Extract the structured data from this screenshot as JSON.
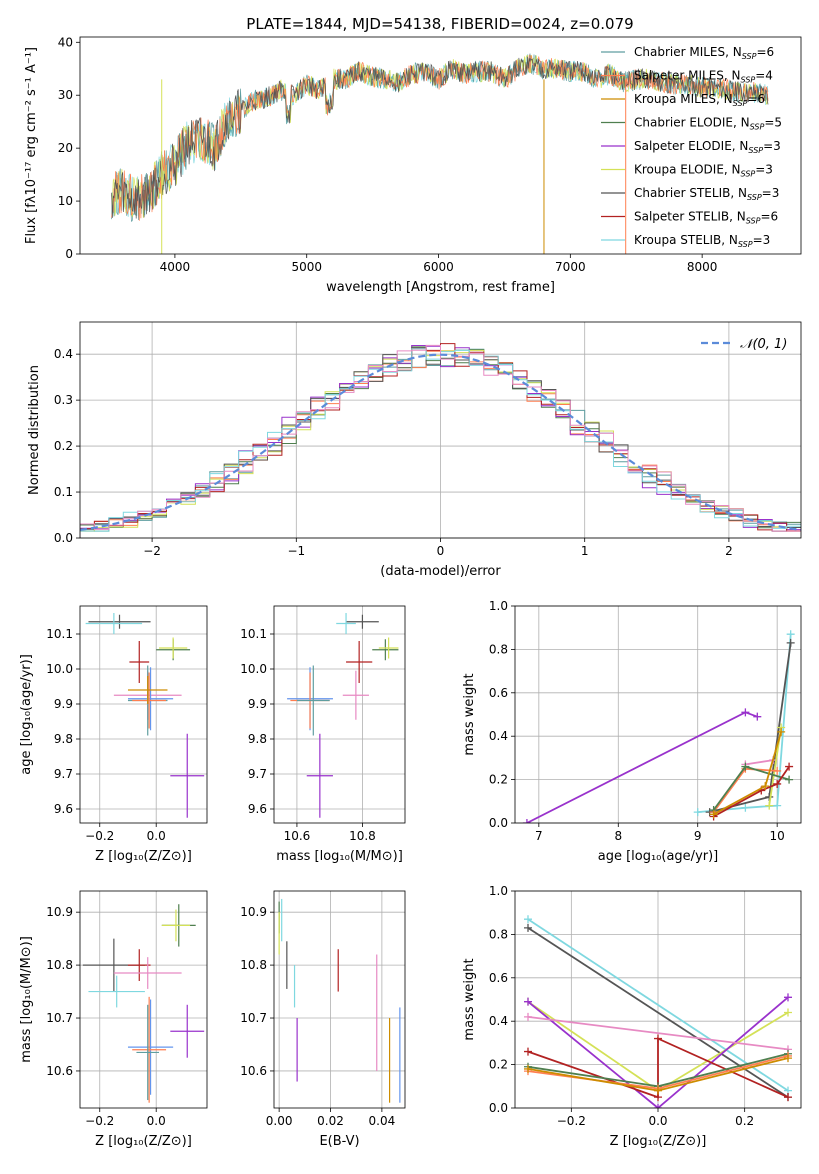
{
  "figure_title": "PLATE=1844, MJD=54138, FIBERID=0024, z=0.079",
  "colors": {
    "Chabrier MILES": "#5f9ea0",
    "Salpeter MILES": "#ff7f50",
    "Kroupa MILES": "#cd8c00",
    "Chabrier ELODIE": "#4f7f4f",
    "Salpeter ELODIE": "#9932cc",
    "Kroupa ELODIE": "#d4e157",
    "Chabrier STELIB": "#555555",
    "Salpeter STELIB": "#b22222",
    "Kroupa STELIB": "#7fd8e0",
    "hotpink": "#e78ac3",
    "royal": "#6495ed",
    "normal_curve": "#5b8bd9"
  },
  "chart_data": [
    {
      "id": "spectrum",
      "type": "line",
      "xlabel": "wavelength [Angstrom, rest frame]",
      "ylabel": "Flux [fλ10⁻¹⁷ erg cm⁻² s⁻¹ A⁻¹]",
      "xlim": [
        3280,
        8750
      ],
      "ylim": [
        0,
        41
      ],
      "xticks": [
        4000,
        5000,
        6000,
        7000,
        8000
      ],
      "yticks": [
        0,
        10,
        20,
        30,
        40
      ],
      "x": [
        3520,
        3600,
        3700,
        3800,
        3900,
        4000,
        4100,
        4200,
        4300,
        4400,
        4500,
        4600,
        4700,
        4800,
        4900,
        5000,
        5100,
        5200,
        5300,
        5400,
        5500,
        5600,
        5700,
        5800,
        5900,
        6000,
        6100,
        6200,
        6300,
        6400,
        6500,
        6600,
        6700,
        6800,
        6900,
        7000,
        7100,
        7200,
        7300,
        7400,
        7500,
        7600,
        7700,
        7800,
        7900,
        8000,
        8100,
        8200,
        8300,
        8400,
        8500
      ],
      "y": [
        11,
        12,
        10,
        11.5,
        15,
        17,
        21,
        22,
        20,
        26,
        27,
        29,
        29.5,
        31,
        30,
        32,
        31,
        33,
        33,
        34.5,
        33.5,
        33,
        32.5,
        34,
        34.5,
        33,
        35,
        34,
        34.5,
        34.5,
        33,
        35,
        36,
        35,
        35,
        34.5,
        34.5,
        33,
        34,
        32.5,
        33,
        33,
        32.5,
        32,
        32,
        31.5,
        31.5,
        31,
        30.5,
        30.5,
        30
      ],
      "legend": {
        "position": "upper right",
        "entries": [
          {
            "label": "Chabrier MILES, N",
            "sub": "SSP",
            "tail": "=6",
            "color": "Chabrier MILES"
          },
          {
            "label": "Salpeter MILES, N",
            "sub": "SSP",
            "tail": "=4",
            "color": "Salpeter MILES"
          },
          {
            "label": "Kroupa MILES, N",
            "sub": "SSP",
            "tail": "=6",
            "color": "Kroupa MILES"
          },
          {
            "label": "Chabrier ELODIE, N",
            "sub": "SSP",
            "tail": "=5",
            "color": "Chabrier ELODIE"
          },
          {
            "label": "Salpeter ELODIE, N",
            "sub": "SSP",
            "tail": "=3",
            "color": "Salpeter ELODIE"
          },
          {
            "label": "Kroupa ELODIE, N",
            "sub": "SSP",
            "tail": "=3",
            "color": "Kroupa ELODIE"
          },
          {
            "label": "Chabrier STELIB, N",
            "sub": "SSP",
            "tail": "=3",
            "color": "Chabrier STELIB"
          },
          {
            "label": "Salpeter STELIB, N",
            "sub": "SSP",
            "tail": "=6",
            "color": "Salpeter STELIB"
          },
          {
            "label": "Kroupa STELIB, N",
            "sub": "SSP",
            "tail": "=3",
            "color": "Kroupa STELIB"
          }
        ]
      }
    },
    {
      "id": "residuals",
      "type": "histogram",
      "xlabel": "(data-model)/error",
      "ylabel": "Normed distribution",
      "xlim": [
        -2.5,
        2.5
      ],
      "ylim": [
        0,
        0.47
      ],
      "xticks": [
        -2,
        -1,
        0,
        1,
        2
      ],
      "yticks": [
        0.0,
        0.1,
        0.2,
        0.3,
        0.4
      ],
      "grid": true,
      "legend": {
        "position": "upper right",
        "label": "𝒩(0, 1)"
      },
      "bin_width": 0.1,
      "series": [
        {
          "color": "Chabrier MILES",
          "offset": 0.0
        },
        {
          "color": "Salpeter MILES",
          "offset": 0.012
        },
        {
          "color": "Chabrier ELODIE",
          "offset": -0.015
        },
        {
          "color": "Salpeter ELODIE",
          "offset": 0.035
        },
        {
          "color": "Kroupa ELODIE",
          "offset": -0.025
        },
        {
          "color": "Chabrier STELIB",
          "offset": 0.008
        },
        {
          "color": "Salpeter STELIB",
          "offset": -0.006
        },
        {
          "color": "Kroupa STELIB",
          "offset": 0.018
        },
        {
          "color": "hotpink",
          "offset": -0.01
        }
      ]
    },
    {
      "id": "age_vs_Z",
      "type": "errorbar",
      "xlabel": "Z [log₁₀(Z/Z⊙)]",
      "ylabel": "age  [log₁₀(age/yr)]",
      "xlim": [
        -0.27,
        0.18
      ],
      "ylim": [
        9.56,
        10.18
      ],
      "xticks": [
        -0.2,
        0.0
      ],
      "yticks": [
        9.6,
        9.7,
        9.8,
        9.9,
        10.0,
        10.1
      ],
      "grid": true,
      "points": [
        {
          "x": -0.13,
          "y": 10.135,
          "dx": 0.11,
          "dy": 0.02,
          "color": "Chabrier STELIB"
        },
        {
          "x": -0.15,
          "y": 10.13,
          "dx": 0.1,
          "dy": 0.03,
          "color": "Kroupa STELIB"
        },
        {
          "x": 0.06,
          "y": 10.055,
          "dx": 0.06,
          "dy": 0.03,
          "color": "Chabrier ELODIE"
        },
        {
          "x": 0.06,
          "y": 10.06,
          "dx": 0.05,
          "dy": 0.03,
          "color": "Kroupa ELODIE"
        },
        {
          "x": -0.06,
          "y": 10.02,
          "dx": 0.035,
          "dy": 0.06,
          "color": "Salpeter STELIB"
        },
        {
          "x": -0.03,
          "y": 9.925,
          "dx": 0.12,
          "dy": 0.07,
          "color": "hotpink"
        },
        {
          "x": -0.03,
          "y": 9.91,
          "dx": 0.07,
          "dy": 0.1,
          "color": "Chabrier MILES"
        },
        {
          "x": -0.02,
          "y": 9.915,
          "dx": 0.08,
          "dy": 0.09,
          "color": "royal"
        },
        {
          "x": -0.025,
          "y": 9.91,
          "dx": 0.06,
          "dy": 0.08,
          "color": "Salpeter MILES"
        },
        {
          "x": -0.03,
          "y": 9.94,
          "dx": 0.07,
          "dy": 0.04,
          "color": "Kroupa MILES"
        },
        {
          "x": 0.11,
          "y": 9.695,
          "dx": 0.06,
          "dy": 0.12,
          "color": "Salpeter ELODIE"
        }
      ]
    },
    {
      "id": "age_vs_mass",
      "type": "errorbar",
      "xlabel": "mass [log₁₀(M/M⊙)]",
      "ylabel": "",
      "xlim": [
        10.53,
        10.93
      ],
      "ylim": [
        9.56,
        10.18
      ],
      "xticks": [
        10.6,
        10.8
      ],
      "yticks": [
        9.6,
        9.7,
        9.8,
        9.9,
        10.0,
        10.1
      ],
      "grid": true,
      "points": [
        {
          "x": 10.8,
          "y": 10.135,
          "dx": 0.05,
          "dy": 0.02,
          "color": "Chabrier STELIB"
        },
        {
          "x": 10.75,
          "y": 10.13,
          "dx": 0.03,
          "dy": 0.03,
          "color": "Kroupa STELIB"
        },
        {
          "x": 10.87,
          "y": 10.055,
          "dx": 0.04,
          "dy": 0.03,
          "color": "Chabrier ELODIE"
        },
        {
          "x": 10.88,
          "y": 10.06,
          "dx": 0.03,
          "dy": 0.03,
          "color": "Kroupa ELODIE"
        },
        {
          "x": 10.79,
          "y": 10.02,
          "dx": 0.04,
          "dy": 0.06,
          "color": "Salpeter STELIB"
        },
        {
          "x": 10.78,
          "y": 9.925,
          "dx": 0.04,
          "dy": 0.07,
          "color": "hotpink"
        },
        {
          "x": 10.64,
          "y": 9.915,
          "dx": 0.07,
          "dy": 0.09,
          "color": "royal"
        },
        {
          "x": 10.64,
          "y": 9.91,
          "dx": 0.06,
          "dy": 0.08,
          "color": "Salpeter MILES"
        },
        {
          "x": 10.65,
          "y": 9.91,
          "dx": 0.05,
          "dy": 0.1,
          "color": "Chabrier MILES"
        },
        {
          "x": 10.67,
          "y": 9.695,
          "dx": 0.04,
          "dy": 0.12,
          "color": "Salpeter ELODIE"
        }
      ]
    },
    {
      "id": "weight_vs_age",
      "type": "line",
      "xlabel": "age  [log₁₀(age/yr)]",
      "ylabel": "mass weight",
      "xlim": [
        6.7,
        10.3
      ],
      "ylim": [
        0,
        1.0
      ],
      "xticks": [
        7,
        8,
        9,
        10
      ],
      "yticks": [
        0.0,
        0.2,
        0.4,
        0.6,
        0.8,
        1.0
      ],
      "grid": true,
      "series": [
        {
          "color": "Salpeter ELODIE",
          "x": [
            6.85,
            9.6,
            9.75
          ],
          "y": [
            0.0,
            0.51,
            0.49
          ]
        },
        {
          "color": "Kroupa STELIB",
          "x": [
            9.0,
            9.6,
            10.0,
            10.17
          ],
          "y": [
            0.05,
            0.07,
            0.08,
            0.87
          ]
        },
        {
          "color": "Chabrier STELIB",
          "x": [
            9.15,
            9.9,
            10.17
          ],
          "y": [
            0.05,
            0.12,
            0.83
          ]
        },
        {
          "color": "hotpink",
          "x": [
            9.6,
            9.95
          ],
          "y": [
            0.27,
            0.29
          ]
        },
        {
          "color": "Kroupa ELODIE",
          "x": [
            9.9,
            10.05
          ],
          "y": [
            0.08,
            0.44
          ]
        },
        {
          "color": "Salpeter MILES",
          "x": [
            9.2,
            9.6,
            10.0
          ],
          "y": [
            0.05,
            0.25,
            0.24
          ]
        },
        {
          "color": "Chabrier ELODIE",
          "x": [
            9.2,
            9.6,
            10.15
          ],
          "y": [
            0.06,
            0.26,
            0.2
          ]
        },
        {
          "color": "Salpeter STELIB",
          "x": [
            9.2,
            9.8,
            10.0,
            10.15
          ],
          "y": [
            0.03,
            0.15,
            0.18,
            0.26
          ]
        },
        {
          "color": "Kroupa MILES",
          "x": [
            9.2,
            9.85,
            10.05
          ],
          "y": [
            0.04,
            0.17,
            0.42
          ]
        }
      ]
    },
    {
      "id": "mass_vs_Z",
      "type": "errorbar",
      "xlabel": "Z [log₁₀(Z/Z⊙)]",
      "ylabel": "mass [log₁₀(M/M⊙)]",
      "xlim": [
        -0.27,
        0.18
      ],
      "ylim": [
        10.53,
        10.94
      ],
      "xticks": [
        -0.2,
        0.0
      ],
      "yticks": [
        10.6,
        10.7,
        10.8,
        10.9
      ],
      "grid": true,
      "points": [
        {
          "x": 0.08,
          "y": 10.875,
          "dx": 0.06,
          "dy": 0.04,
          "color": "Chabrier ELODIE"
        },
        {
          "x": 0.07,
          "y": 10.875,
          "dx": 0.05,
          "dy": 0.03,
          "color": "Kroupa ELODIE"
        },
        {
          "x": -0.15,
          "y": 10.8,
          "dx": 0.11,
          "dy": 0.05,
          "color": "Chabrier STELIB"
        },
        {
          "x": -0.06,
          "y": 10.8,
          "dx": 0.04,
          "dy": 0.03,
          "color": "Salpeter STELIB"
        },
        {
          "x": -0.03,
          "y": 10.785,
          "dx": 0.12,
          "dy": 0.03,
          "color": "hotpink"
        },
        {
          "x": -0.14,
          "y": 10.75,
          "dx": 0.1,
          "dy": 0.03,
          "color": "Kroupa STELIB"
        },
        {
          "x": 0.11,
          "y": 10.675,
          "dx": 0.06,
          "dy": 0.05,
          "color": "Salpeter ELODIE"
        },
        {
          "x": -0.02,
          "y": 10.645,
          "dx": 0.08,
          "dy": 0.09,
          "color": "royal"
        },
        {
          "x": -0.025,
          "y": 10.64,
          "dx": 0.06,
          "dy": 0.1,
          "color": "Salpeter MILES"
        },
        {
          "x": -0.03,
          "y": 10.635,
          "dx": 0.04,
          "dy": 0.09,
          "color": "Chabrier MILES"
        }
      ]
    },
    {
      "id": "mass_vs_ebv",
      "type": "errorbar",
      "xlabel": "E(B-V)",
      "ylabel": "",
      "xlim": [
        -0.002,
        0.049
      ],
      "ylim": [
        10.53,
        10.94
      ],
      "xticks": [
        0.0,
        0.02,
        0.04
      ],
      "yticks": [
        10.6,
        10.7,
        10.8,
        10.9
      ],
      "grid": true,
      "points": [
        {
          "x": 0.0,
          "y": 10.89,
          "dx": 0,
          "dy": 0.03,
          "color": "Chabrier ELODIE"
        },
        {
          "x": 0.0,
          "y": 10.86,
          "dx": 0,
          "dy": 0.04,
          "color": "Kroupa ELODIE"
        },
        {
          "x": 0.001,
          "y": 10.885,
          "dx": 0,
          "dy": 0.04,
          "color": "Kroupa STELIB"
        },
        {
          "x": 0.003,
          "y": 10.8,
          "dx": 0,
          "dy": 0.045,
          "color": "Chabrier STELIB"
        },
        {
          "x": 0.006,
          "y": 10.76,
          "dx": 0,
          "dy": 0.04,
          "color": "Kroupa STELIB"
        },
        {
          "x": 0.007,
          "y": 10.64,
          "dx": 0,
          "dy": 0.06,
          "color": "Salpeter ELODIE"
        },
        {
          "x": 0.023,
          "y": 10.79,
          "dx": 0,
          "dy": 0.04,
          "color": "Salpeter STELIB"
        },
        {
          "x": 0.038,
          "y": 10.71,
          "dx": 0,
          "dy": 0.11,
          "color": "hotpink"
        },
        {
          "x": 0.043,
          "y": 10.62,
          "dx": 0,
          "dy": 0.08,
          "color": "Kroupa MILES"
        },
        {
          "x": 0.047,
          "y": 10.63,
          "dx": 0,
          "dy": 0.09,
          "color": "royal"
        }
      ]
    },
    {
      "id": "weight_vs_Z",
      "type": "line",
      "xlabel": "Z [log₁₀(Z/Z⊙)]",
      "ylabel": "mass weight",
      "xlim": [
        -0.33,
        0.33
      ],
      "ylim": [
        0,
        1.0
      ],
      "xticks": [
        -0.2,
        0.0,
        0.2
      ],
      "yticks": [
        0.0,
        0.2,
        0.4,
        0.6,
        0.8,
        1.0
      ],
      "grid": true,
      "series": [
        {
          "color": "Kroupa STELIB",
          "x": [
            -0.3,
            0.3
          ],
          "y": [
            0.87,
            0.08
          ]
        },
        {
          "color": "Chabrier STELIB",
          "x": [
            -0.3,
            0.3
          ],
          "y": [
            0.83,
            0.05
          ]
        },
        {
          "color": "Kroupa ELODIE",
          "x": [
            -0.3,
            0.0,
            0.3
          ],
          "y": [
            0.49,
            0.08,
            0.44
          ]
        },
        {
          "color": "Salpeter ELODIE",
          "x": [
            -0.3,
            0.0,
            0.3
          ],
          "y": [
            0.49,
            0.0,
            0.51
          ]
        },
        {
          "color": "hotpink",
          "x": [
            -0.3,
            0.3
          ],
          "y": [
            0.42,
            0.27
          ]
        },
        {
          "color": "Salpeter STELIB",
          "x": [
            -0.3,
            0.0,
            0.0,
            0.3
          ],
          "y": [
            0.26,
            0.05,
            0.32,
            0.05
          ]
        },
        {
          "color": "Chabrier ELODIE",
          "x": [
            -0.3,
            0.0,
            0.3
          ],
          "y": [
            0.19,
            0.1,
            0.25
          ]
        },
        {
          "color": "Salpeter MILES",
          "x": [
            -0.3,
            0.0,
            0.3
          ],
          "y": [
            0.17,
            0.09,
            0.24
          ]
        },
        {
          "color": "Kroupa MILES",
          "x": [
            -0.3,
            0.0,
            0.3
          ],
          "y": [
            0.18,
            0.08,
            0.23
          ]
        }
      ]
    }
  ]
}
